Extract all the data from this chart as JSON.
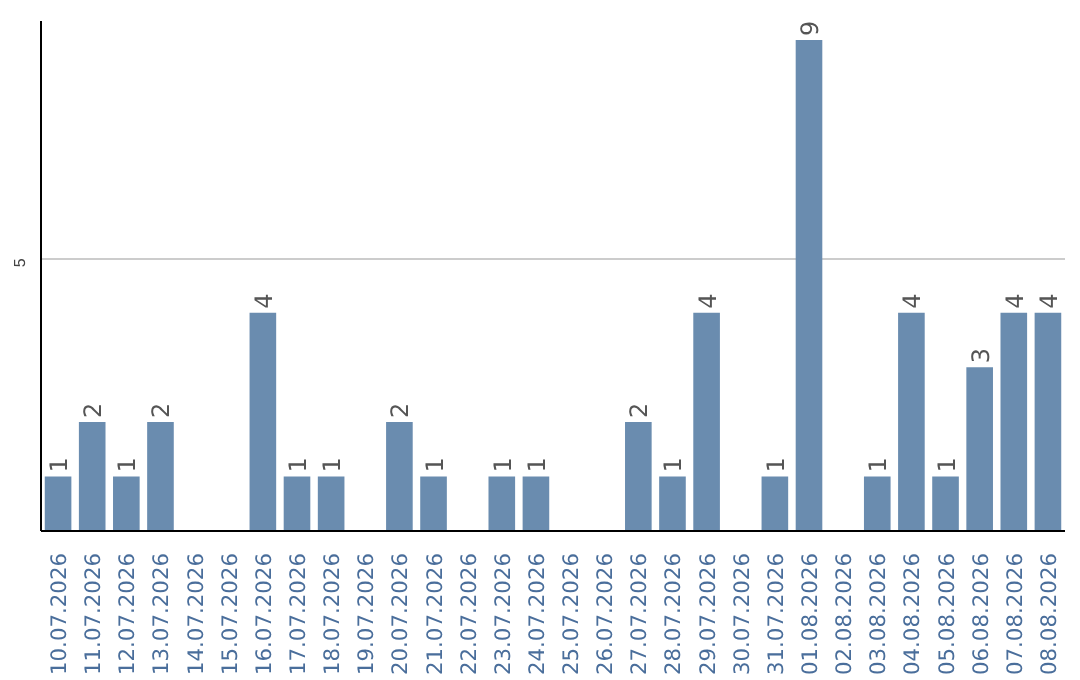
{
  "chart_data": {
    "type": "bar",
    "categories": [
      "10.07.2026",
      "11.07.2026",
      "12.07.2026",
      "13.07.2026",
      "14.07.2026",
      "15.07.2026",
      "16.07.2026",
      "17.07.2026",
      "18.07.2026",
      "19.07.2026",
      "20.07.2026",
      "21.07.2026",
      "22.07.2026",
      "23.07.2026",
      "24.07.2026",
      "25.07.2026",
      "26.07.2026",
      "27.07.2026",
      "28.07.2026",
      "29.07.2026",
      "30.07.2026",
      "31.07.2026",
      "01.08.2026",
      "02.08.2026",
      "03.08.2026",
      "04.08.2026",
      "05.08.2026",
      "06.08.2026",
      "07.08.2026",
      "08.08.2026"
    ],
    "values": [
      1,
      2,
      1,
      2,
      null,
      null,
      4,
      1,
      1,
      null,
      2,
      1,
      null,
      1,
      1,
      null,
      null,
      2,
      1,
      4,
      null,
      1,
      9,
      null,
      1,
      4,
      1,
      3,
      4,
      4
    ],
    "color": "#6a8caf",
    "ylim": [
      0,
      9.35
    ],
    "yticks": [
      5
    ],
    "grid": "y",
    "data_labels": true
  }
}
